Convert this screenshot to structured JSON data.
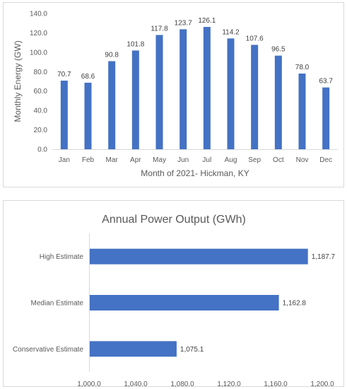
{
  "chart_data": [
    {
      "type": "bar",
      "title": "",
      "xlabel": "Month of 2021- Hickman, KY",
      "ylabel": "Monthly Energy (GW)",
      "categories": [
        "Jan",
        "Feb",
        "Mar",
        "Apr",
        "May",
        "Jun",
        "Jul",
        "Aug",
        "Sep",
        "Oct",
        "Nov",
        "Dec"
      ],
      "values": [
        70.7,
        68.6,
        90.8,
        101.8,
        117.8,
        123.7,
        126.1,
        114.2,
        107.6,
        96.5,
        78.0,
        63.7
      ],
      "ylim": [
        0,
        140
      ],
      "yticks": [
        "0.0",
        "20.0",
        "40.0",
        "60.0",
        "80.0",
        "100.0",
        "120.0",
        "140.0"
      ],
      "grid": false,
      "bar_color": "#4472c4"
    },
    {
      "type": "bar",
      "orientation": "horizontal",
      "title": "Annual Power Output (GWh)",
      "xlabel": "",
      "ylabel": "",
      "categories": [
        "High Estimate",
        "Median Estimate",
        "Conservative Estimate"
      ],
      "values": [
        1187.7,
        1162.8,
        1075.1
      ],
      "value_labels": [
        "1,187.7",
        "1,162.8",
        "1,075.1"
      ],
      "xlim": [
        1000,
        1200
      ],
      "xticks": [
        "1,000.0",
        "1,040.0",
        "1,080.0",
        "1,120.0",
        "1,160.0",
        "1,200.0"
      ],
      "grid": false,
      "bar_color": "#4472c4"
    }
  ]
}
